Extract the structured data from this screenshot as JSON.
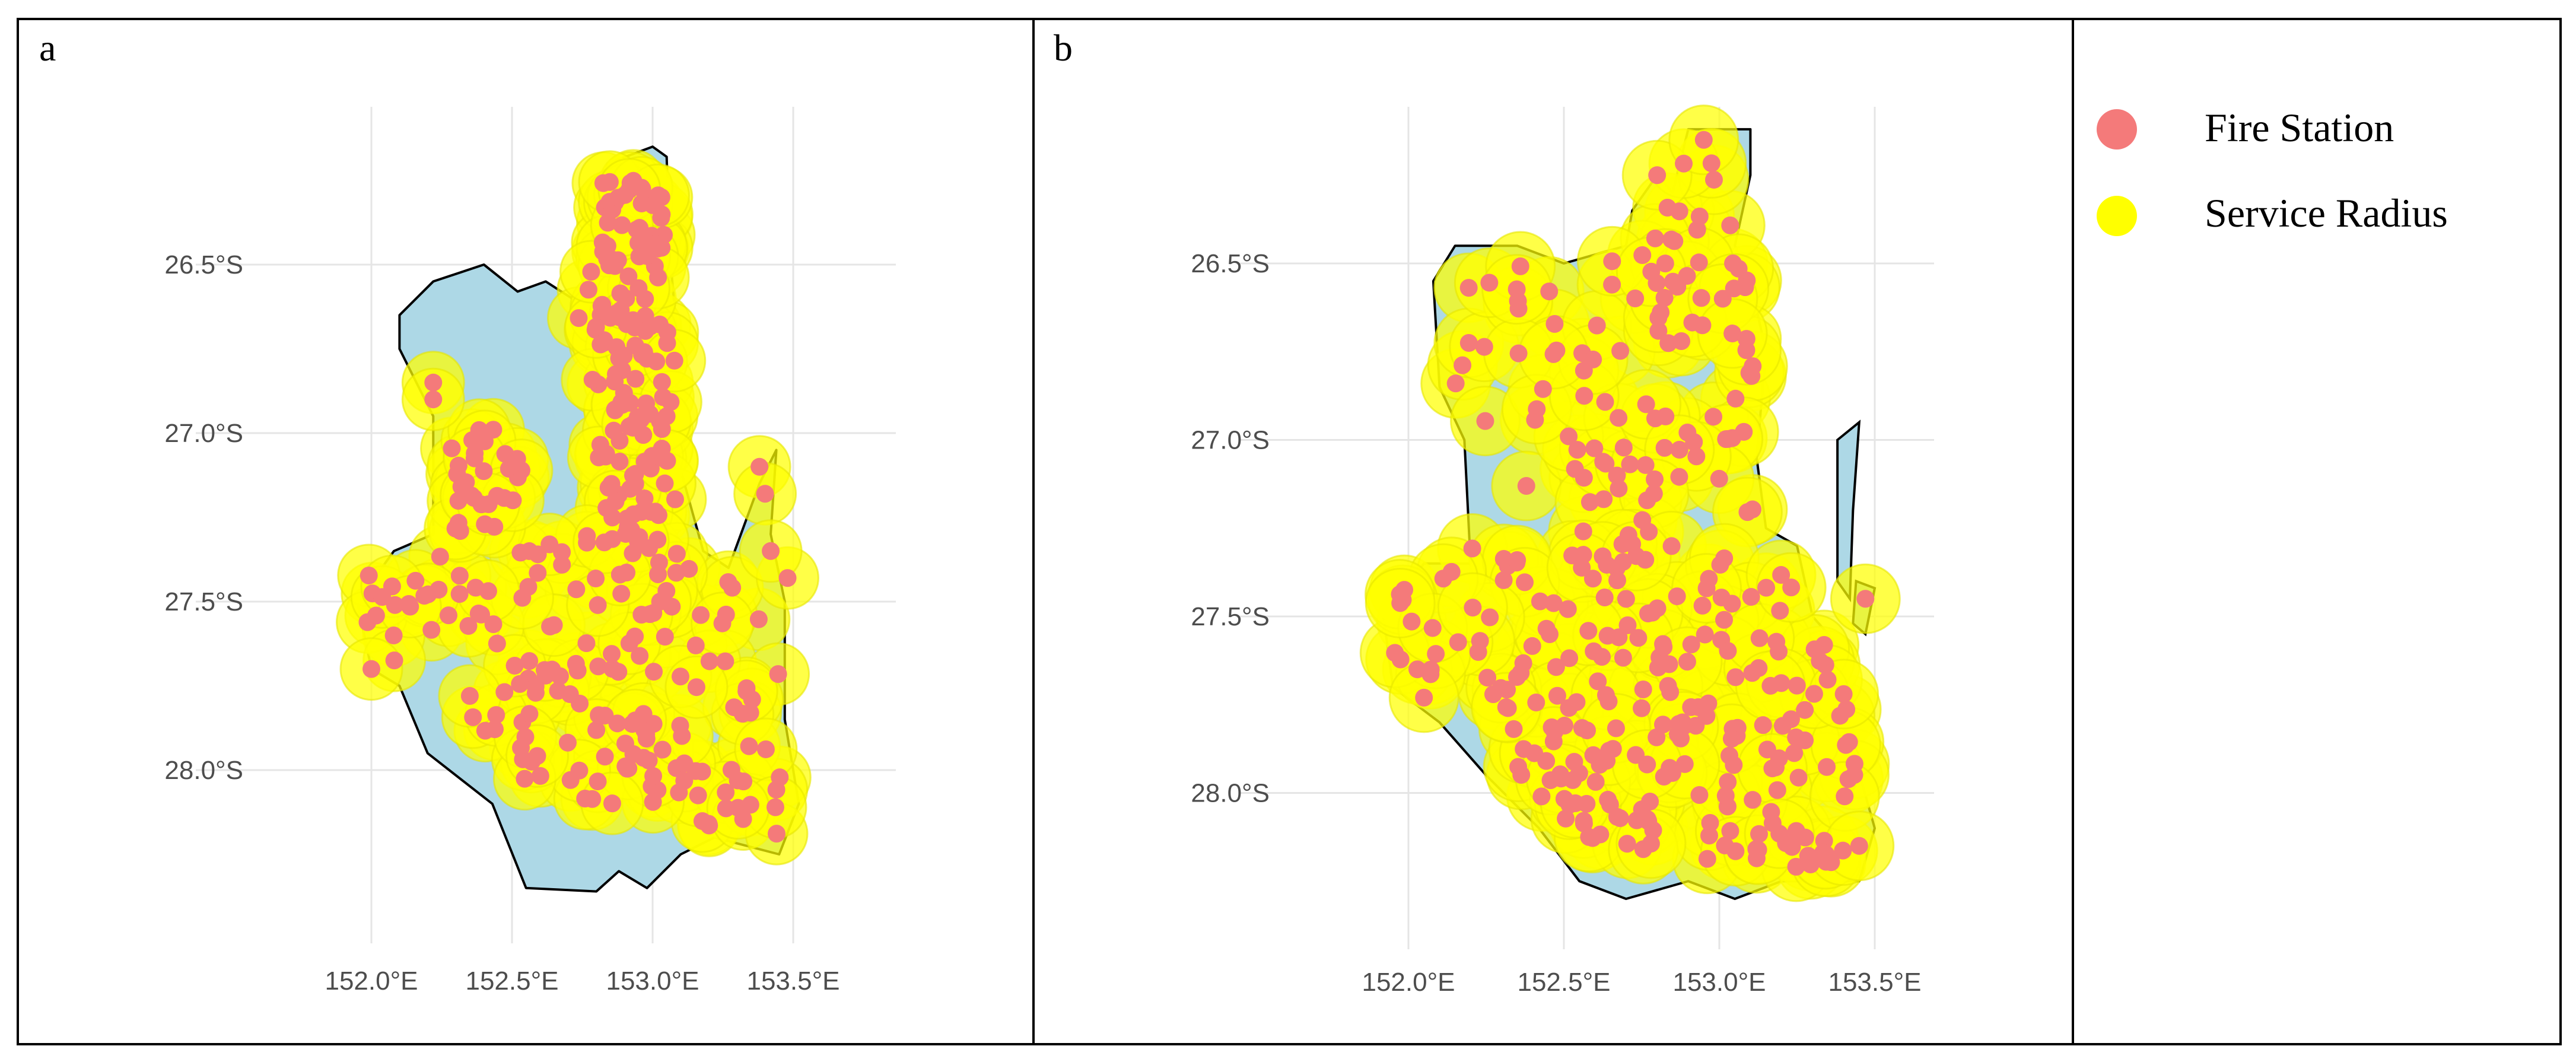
{
  "figure": {
    "panels": [
      {
        "id": "a",
        "label": "a"
      },
      {
        "id": "b",
        "label": "b"
      }
    ],
    "axes": {
      "lat_ticks": [
        "26.5°S",
        "27.0°S",
        "27.5°S",
        "28.0°S"
      ],
      "lon_ticks": [
        "152.0°E",
        "152.5°E",
        "153.0°E",
        "153.5°E"
      ],
      "lat_values": [
        -26.5,
        -27.0,
        -27.5,
        -28.0
      ],
      "lon_values": [
        152.0,
        152.5,
        153.0,
        153.5
      ],
      "grid": true
    },
    "legend": {
      "items": [
        {
          "label": "Fire Station",
          "color": "#f47a7a"
        },
        {
          "label": "Service Radius",
          "color": "#ffff00"
        }
      ]
    },
    "colors": {
      "region_fill": "#add8e6",
      "region_outline": "#000000",
      "station": "#f47a7a",
      "radius": "#ffff00",
      "radius_edge": "#e6e600"
    }
  }
}
